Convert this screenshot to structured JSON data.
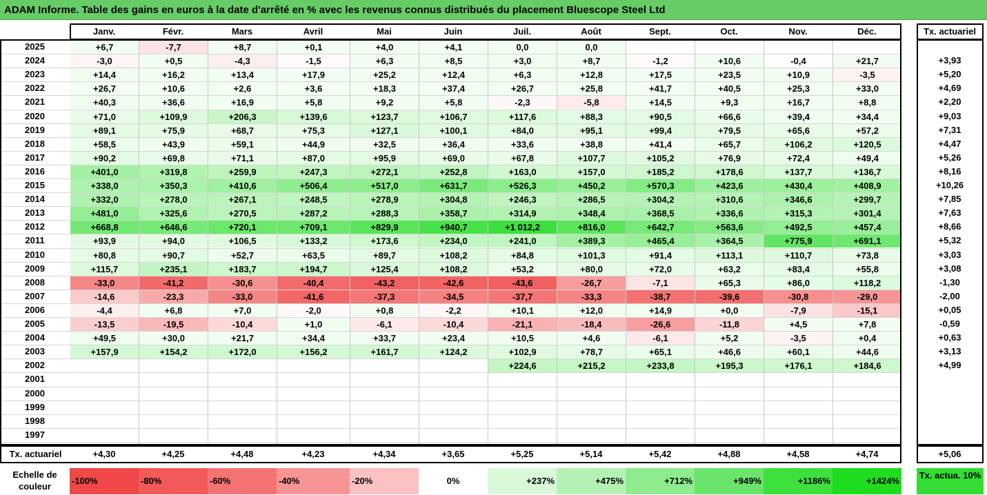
{
  "title": "ADAM Informe. Table des gains en euros à la date d'arrêté en % avec les revenus connus distribués du placement Bluescope Steel Ltd",
  "months": [
    "Janv.",
    "Févr.",
    "Mars",
    "Avril",
    "Mai",
    "Juin",
    "Juil.",
    "Août",
    "Sept.",
    "Oct.",
    "Nov.",
    "Déc."
  ],
  "tx_header": "Tx. actuariel",
  "rows": [
    {
      "year": "2025",
      "values": [
        "+6,7",
        "-7,7",
        "+8,7",
        "+0,1",
        "+4,0",
        "+4,1",
        "0,0",
        "0,0",
        "",
        "",
        "",
        ""
      ],
      "tx": ""
    },
    {
      "year": "2024",
      "values": [
        "-3,0",
        "+0,5",
        "-4,3",
        "-1,5",
        "+6,3",
        "+8,5",
        "+3,0",
        "+8,7",
        "-1,2",
        "+10,6",
        "-0,4",
        "+21,7"
      ],
      "tx": "+3,93"
    },
    {
      "year": "2023",
      "values": [
        "+14,4",
        "+16,2",
        "+13,4",
        "+17,9",
        "+25,2",
        "+12,4",
        "+6,3",
        "+12,8",
        "+17,5",
        "+23,5",
        "+10,9",
        "-3,5"
      ],
      "tx": "+5,20"
    },
    {
      "year": "2022",
      "values": [
        "+26,7",
        "+10,6",
        "+2,6",
        "+3,6",
        "+18,3",
        "+37,4",
        "+26,7",
        "+25,8",
        "+41,7",
        "+40,5",
        "+25,3",
        "+33,0"
      ],
      "tx": "+4,69"
    },
    {
      "year": "2021",
      "values": [
        "+40,3",
        "+36,6",
        "+16,9",
        "+5,8",
        "+9,2",
        "+5,8",
        "-2,3",
        "-5,8",
        "+14,5",
        "+9,3",
        "+16,7",
        "+8,8"
      ],
      "tx": "+2,20"
    },
    {
      "year": "2020",
      "values": [
        "+71,0",
        "+109,9",
        "+206,3",
        "+139,6",
        "+123,7",
        "+106,7",
        "+117,6",
        "+88,3",
        "+90,5",
        "+66,6",
        "+39,4",
        "+34,4"
      ],
      "tx": "+9,03"
    },
    {
      "year": "2019",
      "values": [
        "+89,1",
        "+75,9",
        "+68,7",
        "+75,3",
        "+127,1",
        "+100,1",
        "+84,0",
        "+95,1",
        "+99,4",
        "+79,5",
        "+65,6",
        "+57,2"
      ],
      "tx": "+7,31"
    },
    {
      "year": "2018",
      "values": [
        "+58,5",
        "+43,9",
        "+59,1",
        "+44,9",
        "+32,5",
        "+36,4",
        "+33,6",
        "+38,8",
        "+41,4",
        "+65,7",
        "+106,2",
        "+120,5"
      ],
      "tx": "+4,47"
    },
    {
      "year": "2017",
      "values": [
        "+90,2",
        "+69,8",
        "+71,1",
        "+87,0",
        "+95,9",
        "+69,0",
        "+67,8",
        "+107,7",
        "+105,2",
        "+76,9",
        "+72,4",
        "+49,4"
      ],
      "tx": "+5,26"
    },
    {
      "year": "2016",
      "values": [
        "+401,0",
        "+319,8",
        "+259,9",
        "+247,3",
        "+272,1",
        "+252,8",
        "+163,0",
        "+157,0",
        "+185,2",
        "+178,6",
        "+137,7",
        "+136,7"
      ],
      "tx": "+8,16"
    },
    {
      "year": "2015",
      "values": [
        "+338,0",
        "+350,3",
        "+410,6",
        "+506,4",
        "+517,0",
        "+631,7",
        "+526,3",
        "+450,2",
        "+570,3",
        "+423,6",
        "+430,4",
        "+408,9"
      ],
      "tx": "+10,26"
    },
    {
      "year": "2014",
      "values": [
        "+332,0",
        "+278,0",
        "+267,1",
        "+248,5",
        "+278,9",
        "+304,8",
        "+246,3",
        "+286,5",
        "+304,2",
        "+310,6",
        "+346,6",
        "+299,7"
      ],
      "tx": "+7,85"
    },
    {
      "year": "2013",
      "values": [
        "+481,0",
        "+325,6",
        "+270,5",
        "+287,2",
        "+288,3",
        "+358,7",
        "+314,9",
        "+348,4",
        "+368,5",
        "+336,6",
        "+315,3",
        "+301,4"
      ],
      "tx": "+7,63"
    },
    {
      "year": "2012",
      "values": [
        "+668,8",
        "+646,6",
        "+720,1",
        "+709,1",
        "+829,9",
        "+940,7",
        "+1 012,2",
        "+816,0",
        "+642,7",
        "+563,6",
        "+492,5",
        "+457,4"
      ],
      "tx": "+8,66"
    },
    {
      "year": "2011",
      "values": [
        "+93,9",
        "+94,0",
        "+106,5",
        "+133,2",
        "+173,6",
        "+234,0",
        "+241,0",
        "+389,3",
        "+465,4",
        "+364,5",
        "+775,9",
        "+691,1"
      ],
      "tx": "+5,32"
    },
    {
      "year": "2010",
      "values": [
        "+80,8",
        "+90,7",
        "+52,7",
        "+63,5",
        "+89,7",
        "+108,2",
        "+84,8",
        "+101,3",
        "+91,4",
        "+113,1",
        "+110,7",
        "+73,8"
      ],
      "tx": "+3,03"
    },
    {
      "year": "2009",
      "values": [
        "+115,7",
        "+235,1",
        "+183,7",
        "+194,7",
        "+125,4",
        "+108,2",
        "+53,2",
        "+80,0",
        "+72,0",
        "+63,2",
        "+83,4",
        "+55,8"
      ],
      "tx": "+3,08"
    },
    {
      "year": "2008",
      "values": [
        "-33,0",
        "-41,2",
        "-30,6",
        "-40,4",
        "-43,2",
        "-42,6",
        "-43,6",
        "-26,7",
        "-7,1",
        "+65,3",
        "+86,0",
        "+118,2"
      ],
      "tx": "-1,30"
    },
    {
      "year": "2007",
      "values": [
        "-14,6",
        "-23,3",
        "-33,0",
        "-41,6",
        "-37,3",
        "-34,5",
        "-37,7",
        "-33,3",
        "-38,7",
        "-39,6",
        "-30,8",
        "-29,0"
      ],
      "tx": "-2,00"
    },
    {
      "year": "2006",
      "values": [
        "-4,4",
        "+6,8",
        "+7,0",
        "-2,0",
        "+0,8",
        "-2,2",
        "+10,1",
        "+12,0",
        "+14,9",
        "+0,0",
        "-7,9",
        "-15,1"
      ],
      "tx": "+0,05"
    },
    {
      "year": "2005",
      "values": [
        "-13,5",
        "-19,5",
        "-10,4",
        "+1,0",
        "-6,1",
        "-10,4",
        "-21,1",
        "-18,4",
        "-26,6",
        "-11,8",
        "+4,5",
        "+7,8"
      ],
      "tx": "-0,59"
    },
    {
      "year": "2004",
      "values": [
        "+49,5",
        "+30,0",
        "+21,7",
        "+34,4",
        "+33,7",
        "+23,4",
        "+10,5",
        "+4,6",
        "-6,1",
        "+5,2",
        "-3,5",
        "+0,4"
      ],
      "tx": "+0,63"
    },
    {
      "year": "2003",
      "values": [
        "+157,9",
        "+154,2",
        "+172,0",
        "+156,2",
        "+161,7",
        "+124,2",
        "+102,9",
        "+78,7",
        "+65,1",
        "+46,6",
        "+60,1",
        "+44,6"
      ],
      "tx": "+3,13"
    },
    {
      "year": "2002",
      "values": [
        "",
        "",
        "",
        "",
        "",
        "",
        "+224,6",
        "+215,2",
        "+233,8",
        "+195,3",
        "+176,1",
        "+184,6"
      ],
      "tx": "+4,99"
    },
    {
      "year": "2001",
      "values": [
        "",
        "",
        "",
        "",
        "",
        "",
        "",
        "",
        "",
        "",
        "",
        ""
      ],
      "tx": ""
    },
    {
      "year": "2000",
      "values": [
        "",
        "",
        "",
        "",
        "",
        "",
        "",
        "",
        "",
        "",
        "",
        ""
      ],
      "tx": ""
    },
    {
      "year": "1999",
      "values": [
        "",
        "",
        "",
        "",
        "",
        "",
        "",
        "",
        "",
        "",
        "",
        ""
      ],
      "tx": ""
    },
    {
      "year": "1998",
      "values": [
        "",
        "",
        "",
        "",
        "",
        "",
        "",
        "",
        "",
        "",
        "",
        ""
      ],
      "tx": ""
    },
    {
      "year": "1997",
      "values": [
        "",
        "",
        "",
        "",
        "",
        "",
        "",
        "",
        "",
        "",
        "",
        ""
      ],
      "tx": ""
    }
  ],
  "footer": {
    "label": "Tx. actuariel",
    "values": [
      "+4,30",
      "+4,25",
      "+4,48",
      "+4,23",
      "+4,34",
      "+3,65",
      "+5,25",
      "+5,14",
      "+5,42",
      "+4,88",
      "+4,58",
      "+4,74"
    ],
    "tx": "+5,06"
  },
  "legend": {
    "label": "Echelle de couleur",
    "items": [
      {
        "text": "-100%",
        "color": "#f04848"
      },
      {
        "text": "-80%",
        "color": "#f25a5a"
      },
      {
        "text": "-60%",
        "color": "#f47474"
      },
      {
        "text": "-40%",
        "color": "#f79494"
      },
      {
        "text": "-20%",
        "color": "#fbc2c2"
      },
      {
        "text": "0%",
        "color": "#ffffff"
      },
      {
        "text": "+237%",
        "color": "#d8f8d8"
      },
      {
        "text": "+475%",
        "color": "#b4f2b4"
      },
      {
        "text": "+712%",
        "color": "#8eec8e"
      },
      {
        "text": "+949%",
        "color": "#6ae46a"
      },
      {
        "text": "+1186%",
        "color": "#3ee03e"
      },
      {
        "text": "+1424%",
        "color": "#1fdc1f"
      }
    ],
    "tx_label": "Tx. actua. 10%",
    "tx_color": "#33dd33"
  },
  "colors": {
    "title_bg": "#66cc66",
    "neg_max": "#f04848",
    "pos_max": "#1fdc1f"
  }
}
